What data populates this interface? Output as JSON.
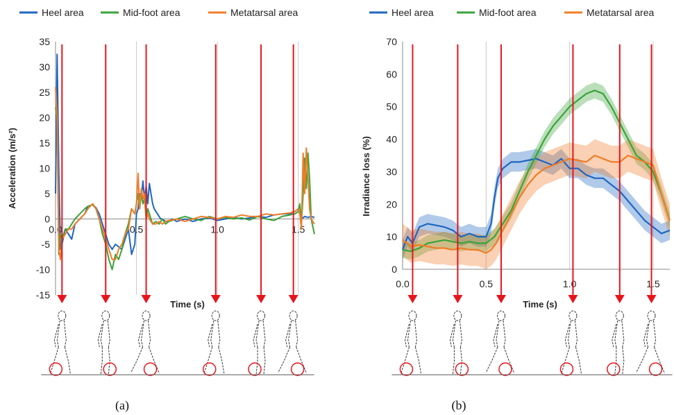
{
  "colors": {
    "heel": "#1f66c1",
    "midfoot": "#3aa33a",
    "metatarsal": "#f07c28",
    "arrow": "#e8141b",
    "grid": "#c8c8c8"
  },
  "walking_figure_icon": "walking-person-icon",
  "foot_marker_icon": "red-circle-icon",
  "chart_data": [
    {
      "type": "line",
      "panel_label": "(a)",
      "xlabel": "Time (s)",
      "ylabel": "Acceleration (m/s²)",
      "xlim": [
        0,
        1.6
      ],
      "ylim": [
        -15,
        35
      ],
      "xticks": [
        {
          "v": 0.0,
          "label": "0.0"
        },
        {
          "v": 0.5,
          "label": "0.5"
        },
        {
          "v": 1.0,
          "label": "1.0"
        },
        {
          "v": 1.5,
          "label": "1.5"
        }
      ],
      "yticks": [
        {
          "v": -15,
          "label": "-15"
        },
        {
          "v": -10,
          "label": "-10"
        },
        {
          "v": -5,
          "label": "-5"
        },
        {
          "v": 0,
          "label": "0"
        },
        {
          "v": 5,
          "label": "5"
        },
        {
          "v": 10,
          "label": "10"
        },
        {
          "v": 15,
          "label": "15"
        },
        {
          "v": 20,
          "label": "20"
        },
        {
          "v": 25,
          "label": "25"
        },
        {
          "v": 30,
          "label": "30"
        },
        {
          "v": 35,
          "label": "35"
        }
      ],
      "grid_x": [
        0.5,
        1.0,
        1.5
      ],
      "legend": [
        "Heel area",
        "Mid-foot area",
        "Metatarsal area"
      ],
      "legend_position": "top",
      "arrows_at": [
        0.04,
        0.31,
        0.56,
        0.99,
        1.27,
        1.47
      ],
      "foot_circle_positions": [
        "heel",
        "toe",
        "toe",
        "heel",
        "heel",
        "toe"
      ],
      "series": [
        {
          "name": "Heel area",
          "key": "heel",
          "x": [
            0.0,
            0.01,
            0.02,
            0.03,
            0.04,
            0.06,
            0.08,
            0.1,
            0.12,
            0.15,
            0.18,
            0.2,
            0.23,
            0.25,
            0.27,
            0.29,
            0.31,
            0.33,
            0.35,
            0.37,
            0.39,
            0.41,
            0.43,
            0.45,
            0.47,
            0.49,
            0.5,
            0.51,
            0.52,
            0.53,
            0.54,
            0.55,
            0.56,
            0.57,
            0.58,
            0.59,
            0.6,
            0.61,
            0.62,
            0.63,
            0.64,
            0.65,
            0.66,
            0.68,
            0.7,
            0.72,
            0.75,
            0.8,
            0.85,
            0.9,
            0.95,
            1.0,
            1.05,
            1.1,
            1.15,
            1.2,
            1.25,
            1.3,
            1.35,
            1.4,
            1.45,
            1.48,
            1.5,
            1.52,
            1.54,
            1.56,
            1.58,
            1.6
          ],
          "y": [
            5,
            32.5,
            10,
            -6,
            -5,
            -2,
            -3,
            -4,
            -1,
            0,
            1,
            2.5,
            2.8,
            2.2,
            1,
            -1,
            -3,
            -5,
            -6,
            -5,
            -5.5,
            -6,
            -4,
            -2,
            -7,
            -5,
            1,
            2,
            5,
            4,
            7.5,
            4,
            6.5,
            3,
            7,
            5,
            3,
            2,
            1.5,
            1,
            0.5,
            0,
            0,
            -0.5,
            -0.5,
            0,
            -0.5,
            0,
            -0.5,
            0,
            0.2,
            -0.3,
            0,
            0.3,
            0,
            0.2,
            0.5,
            0.3,
            0.8,
            1,
            1,
            1.5,
            2,
            0,
            0.5,
            0.3,
            0.5,
            0.3
          ]
        },
        {
          "name": "Mid-foot area",
          "key": "midfoot",
          "x": [
            0.0,
            0.01,
            0.02,
            0.03,
            0.04,
            0.06,
            0.08,
            0.1,
            0.12,
            0.15,
            0.18,
            0.2,
            0.23,
            0.25,
            0.27,
            0.29,
            0.31,
            0.33,
            0.35,
            0.37,
            0.39,
            0.41,
            0.43,
            0.45,
            0.47,
            0.49,
            0.5,
            0.51,
            0.52,
            0.53,
            0.54,
            0.55,
            0.56,
            0.57,
            0.58,
            0.59,
            0.6,
            0.62,
            0.64,
            0.66,
            0.68,
            0.7,
            0.75,
            0.8,
            0.85,
            0.9,
            0.95,
            1.0,
            1.05,
            1.1,
            1.15,
            1.2,
            1.25,
            1.3,
            1.35,
            1.4,
            1.45,
            1.48,
            1.5,
            1.51,
            1.52,
            1.53,
            1.54,
            1.55,
            1.56,
            1.57,
            1.58,
            1.6
          ],
          "y": [
            22,
            20,
            -7,
            -3,
            -4,
            -2,
            -2,
            -1,
            0,
            1,
            2,
            2.5,
            2.8,
            2,
            0,
            -3,
            -5,
            -8,
            -10,
            -7,
            -8,
            -6,
            -3,
            -1,
            2,
            1,
            3,
            5,
            2,
            5,
            3,
            4,
            0,
            2,
            1,
            0,
            -1,
            -0.5,
            -1,
            0,
            -1,
            -0.5,
            0,
            0.5,
            0,
            -0.3,
            0.5,
            0,
            0.3,
            0,
            0.2,
            -0.2,
            0.5,
            0,
            -0.3,
            0.5,
            0.8,
            1,
            1.5,
            3,
            -1,
            5,
            12,
            6,
            13,
            8,
            0,
            -3
          ]
        },
        {
          "name": "Metatarsal area",
          "key": "metatarsal",
          "x": [
            0.0,
            0.01,
            0.02,
            0.03,
            0.04,
            0.06,
            0.08,
            0.1,
            0.12,
            0.15,
            0.18,
            0.2,
            0.23,
            0.25,
            0.27,
            0.29,
            0.31,
            0.33,
            0.35,
            0.37,
            0.39,
            0.41,
            0.43,
            0.45,
            0.47,
            0.49,
            0.5,
            0.51,
            0.52,
            0.53,
            0.54,
            0.55,
            0.56,
            0.57,
            0.58,
            0.59,
            0.6,
            0.62,
            0.64,
            0.66,
            0.68,
            0.7,
            0.75,
            0.8,
            0.85,
            0.9,
            0.95,
            1.0,
            1.05,
            1.1,
            1.15,
            1.2,
            1.25,
            1.3,
            1.35,
            1.4,
            1.45,
            1.48,
            1.5,
            1.51,
            1.52,
            1.53,
            1.54,
            1.55,
            1.56,
            1.57,
            1.58,
            1.6
          ],
          "y": [
            26,
            20,
            -6,
            -8,
            -4,
            -3,
            -2,
            -2,
            -1,
            0,
            1,
            2,
            3,
            2,
            0,
            -2,
            -4,
            -6,
            -8,
            -8,
            -6,
            -5,
            -3,
            -2,
            2,
            1,
            3,
            9,
            2,
            6,
            4,
            5,
            0,
            1,
            0,
            -0.5,
            -1,
            -1,
            -0.5,
            -1,
            -0.5,
            -0.3,
            0,
            -0.5,
            0,
            0.5,
            0.3,
            0,
            0.5,
            0.3,
            0.8,
            0.5,
            0.5,
            1,
            0.8,
            1,
            1.2,
            1.5,
            2,
            1,
            -2,
            13,
            5,
            14,
            8,
            2,
            0,
            -1
          ]
        }
      ]
    },
    {
      "type": "line",
      "panel_label": "(b)",
      "xlabel": "Time (s)",
      "ylabel": "Irradiance loss (%)",
      "xlim": [
        0,
        1.6
      ],
      "ylim": [
        0,
        70
      ],
      "xticks": [
        {
          "v": 0.0,
          "label": "0.0"
        },
        {
          "v": 0.5,
          "label": "0.5"
        },
        {
          "v": 1.0,
          "label": "1.0"
        },
        {
          "v": 1.5,
          "label": "1.5"
        }
      ],
      "yticks": [
        {
          "v": 0,
          "label": "0"
        },
        {
          "v": 10,
          "label": "10"
        },
        {
          "v": 20,
          "label": "20"
        },
        {
          "v": 30,
          "label": "30"
        },
        {
          "v": 40,
          "label": "40"
        },
        {
          "v": 50,
          "label": "50"
        },
        {
          "v": 60,
          "label": "60"
        },
        {
          "v": 70,
          "label": "70"
        }
      ],
      "grid_x": [
        0.5,
        1.0,
        1.5
      ],
      "legend": [
        "Heel area",
        "Mid-foot area",
        "Metatarsal area"
      ],
      "legend_position": "top",
      "arrows_at": [
        0.06,
        0.33,
        0.59,
        1.02,
        1.3,
        1.49
      ],
      "foot_circle_positions": [
        "heel",
        "toe",
        "toe",
        "heel",
        "heel",
        "toe"
      ],
      "series": [
        {
          "name": "Heel area",
          "key": "heel",
          "band": 3,
          "x": [
            0.0,
            0.03,
            0.06,
            0.1,
            0.15,
            0.2,
            0.25,
            0.3,
            0.35,
            0.4,
            0.45,
            0.5,
            0.53,
            0.55,
            0.57,
            0.6,
            0.65,
            0.7,
            0.75,
            0.8,
            0.85,
            0.9,
            0.95,
            1.0,
            1.05,
            1.1,
            1.15,
            1.2,
            1.25,
            1.3,
            1.35,
            1.4,
            1.45,
            1.5,
            1.55,
            1.6
          ],
          "y": [
            6,
            10,
            8,
            13,
            14,
            13.5,
            13,
            12,
            10,
            11,
            10,
            10,
            14,
            22,
            28,
            31,
            33,
            33,
            33.5,
            34,
            33,
            32,
            34,
            31,
            31,
            29,
            28,
            28,
            26,
            24,
            21,
            18,
            15,
            13,
            11,
            12
          ]
        },
        {
          "name": "Mid-foot area",
          "key": "midfoot",
          "band": 2.5,
          "x": [
            0.0,
            0.05,
            0.1,
            0.15,
            0.2,
            0.25,
            0.3,
            0.35,
            0.4,
            0.45,
            0.5,
            0.55,
            0.6,
            0.65,
            0.7,
            0.75,
            0.8,
            0.85,
            0.9,
            0.95,
            1.0,
            1.05,
            1.1,
            1.15,
            1.2,
            1.25,
            1.3,
            1.35,
            1.4,
            1.45,
            1.5,
            1.55,
            1.6
          ],
          "y": [
            6,
            5.5,
            6.5,
            8,
            8.5,
            9,
            8.5,
            8,
            8.5,
            8,
            8,
            10,
            14,
            18,
            24,
            30,
            35,
            40,
            44,
            47,
            50,
            52,
            54,
            55,
            54,
            50,
            45,
            40,
            35,
            33,
            30,
            23,
            15
          ]
        },
        {
          "name": "Metatarsal area",
          "key": "metatarsal",
          "band": 5,
          "x": [
            0.0,
            0.05,
            0.1,
            0.15,
            0.2,
            0.25,
            0.3,
            0.35,
            0.4,
            0.45,
            0.5,
            0.53,
            0.56,
            0.6,
            0.65,
            0.7,
            0.75,
            0.8,
            0.85,
            0.9,
            0.95,
            1.0,
            1.05,
            1.1,
            1.15,
            1.2,
            1.25,
            1.3,
            1.35,
            1.4,
            1.45,
            1.5,
            1.55,
            1.6
          ],
          "y": [
            9,
            7,
            7.5,
            7,
            6.5,
            6.5,
            6,
            6.5,
            6,
            6,
            5,
            6,
            8,
            12,
            17,
            22,
            26,
            29,
            31,
            32,
            33,
            34,
            33.5,
            33,
            35,
            34,
            33,
            33,
            35,
            34,
            33,
            32,
            23,
            15
          ]
        }
      ]
    }
  ]
}
